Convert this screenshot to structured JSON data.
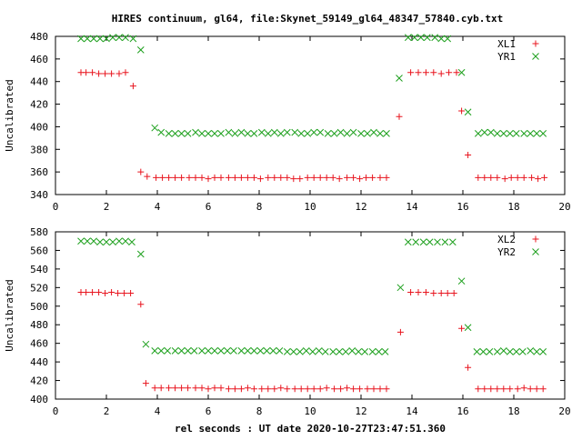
{
  "title": "HIRES continuum, gl64, file:Skynet_59149_gl64_48347_57840.cyb.txt",
  "chart_data": [
    {
      "type": "scatter",
      "ylabel": "Uncalibrated",
      "xlabel": "",
      "xlim": [
        0,
        20
      ],
      "ylim": [
        340,
        480
      ],
      "xticks": [
        0,
        2,
        4,
        6,
        8,
        10,
        12,
        14,
        16,
        18,
        20
      ],
      "yticks": [
        340,
        360,
        380,
        400,
        420,
        440,
        460,
        480
      ],
      "legend_position": "top-right",
      "series": [
        {
          "name": "XL1",
          "color": "#e8141e",
          "marker": "plus",
          "x": [
            1.0,
            1.2,
            1.45,
            1.7,
            1.95,
            2.2,
            2.5,
            2.75,
            3.05,
            3.35,
            3.6,
            3.95,
            4.2,
            4.45,
            4.7,
            4.95,
            5.25,
            5.5,
            5.75,
            6.0,
            6.25,
            6.5,
            6.8,
            7.05,
            7.3,
            7.55,
            7.8,
            8.05,
            8.35,
            8.6,
            8.85,
            9.1,
            9.35,
            9.6,
            9.9,
            10.15,
            10.4,
            10.65,
            10.9,
            11.15,
            11.45,
            11.7,
            11.95,
            12.2,
            12.45,
            12.75,
            13.0,
            13.5,
            13.95,
            14.25,
            14.55,
            14.85,
            15.15,
            15.45,
            15.75,
            15.95,
            16.2,
            16.6,
            16.85,
            17.1,
            17.35,
            17.65,
            17.9,
            18.15,
            18.4,
            18.7,
            18.95,
            19.2
          ],
          "y": [
            448,
            448,
            448,
            447,
            447,
            447,
            447,
            448,
            436,
            360,
            356,
            355,
            355,
            355,
            355,
            355,
            355,
            355,
            355,
            354,
            355,
            355,
            355,
            355,
            355,
            355,
            355,
            354,
            355,
            355,
            355,
            355,
            354,
            354,
            355,
            355,
            355,
            355,
            355,
            354,
            355,
            355,
            354,
            355,
            355,
            355,
            355,
            409,
            448,
            448,
            448,
            448,
            447,
            448,
            448,
            414,
            375,
            355,
            355,
            355,
            355,
            354,
            355,
            355,
            355,
            355,
            354,
            355
          ]
        },
        {
          "name": "YR1",
          "color": "#1ea01e",
          "marker": "cross",
          "x": [
            1.0,
            1.25,
            1.5,
            1.75,
            2.0,
            2.25,
            2.5,
            2.75,
            3.05,
            3.35,
            3.9,
            4.15,
            4.45,
            4.7,
            4.95,
            5.2,
            5.5,
            5.75,
            6.0,
            6.25,
            6.5,
            6.8,
            7.05,
            7.3,
            7.55,
            7.8,
            8.1,
            8.35,
            8.6,
            8.85,
            9.1,
            9.4,
            9.65,
            9.9,
            10.15,
            10.4,
            10.7,
            10.95,
            11.2,
            11.45,
            11.7,
            12.0,
            12.25,
            12.5,
            12.75,
            13.0,
            13.5,
            13.85,
            14.1,
            14.35,
            14.6,
            14.9,
            15.15,
            15.4,
            15.95,
            16.2,
            16.6,
            16.85,
            17.1,
            17.35,
            17.6,
            17.85,
            18.1,
            18.4,
            18.65,
            18.9,
            19.15
          ],
          "y": [
            478,
            478,
            478,
            478,
            478,
            479,
            479,
            479,
            478,
            468,
            399,
            395,
            394,
            394,
            394,
            394,
            395,
            394,
            394,
            394,
            394,
            395,
            394,
            395,
            394,
            394,
            395,
            394,
            395,
            394,
            395,
            395,
            394,
            394,
            395,
            395,
            394,
            394,
            395,
            394,
            395,
            394,
            394,
            395,
            394,
            394,
            443,
            479,
            479,
            479,
            479,
            479,
            478,
            478,
            448,
            413,
            394,
            395,
            395,
            394,
            394,
            394,
            394,
            394,
            394,
            394,
            394
          ]
        }
      ]
    },
    {
      "type": "scatter",
      "ylabel": "Uncalibrated",
      "xlabel": "rel seconds : UT date 2020-10-27T23:47:51.360",
      "xlim": [
        0,
        20
      ],
      "ylim": [
        400,
        580
      ],
      "xticks": [
        0,
        2,
        4,
        6,
        8,
        10,
        12,
        14,
        16,
        18,
        20
      ],
      "yticks": [
        400,
        420,
        440,
        460,
        480,
        500,
        520,
        540,
        560,
        580
      ],
      "legend_position": "top-right",
      "series": [
        {
          "name": "XL2",
          "color": "#e8141e",
          "marker": "plus",
          "x": [
            1.0,
            1.2,
            1.45,
            1.7,
            1.95,
            2.2,
            2.45,
            2.7,
            2.95,
            3.35,
            3.55,
            3.9,
            4.15,
            4.45,
            4.7,
            4.95,
            5.2,
            5.5,
            5.75,
            6.0,
            6.25,
            6.5,
            6.8,
            7.05,
            7.3,
            7.55,
            7.8,
            8.1,
            8.35,
            8.6,
            8.85,
            9.1,
            9.4,
            9.65,
            9.9,
            10.15,
            10.4,
            10.65,
            10.95,
            11.2,
            11.45,
            11.7,
            11.95,
            12.25,
            12.5,
            12.75,
            13.0,
            13.55,
            13.95,
            14.25,
            14.55,
            14.85,
            15.15,
            15.4,
            15.65,
            15.95,
            16.2,
            16.6,
            16.85,
            17.1,
            17.35,
            17.6,
            17.85,
            18.15,
            18.4,
            18.65,
            18.9,
            19.15
          ],
          "y": [
            515,
            515,
            515,
            515,
            514,
            515,
            514,
            514,
            514,
            502,
            417,
            412,
            412,
            412,
            412,
            412,
            412,
            412,
            412,
            411,
            412,
            412,
            411,
            411,
            411,
            412,
            411,
            411,
            411,
            411,
            412,
            411,
            411,
            411,
            411,
            411,
            411,
            412,
            411,
            411,
            412,
            411,
            411,
            411,
            411,
            411,
            411,
            472,
            515,
            515,
            515,
            514,
            514,
            514,
            514,
            476,
            434,
            411,
            411,
            411,
            411,
            411,
            411,
            411,
            412,
            411,
            411,
            411
          ]
        },
        {
          "name": "YR2",
          "color": "#1ea01e",
          "marker": "cross",
          "x": [
            1.0,
            1.25,
            1.5,
            1.75,
            2.0,
            2.25,
            2.5,
            2.75,
            3.0,
            3.35,
            3.55,
            3.9,
            4.15,
            4.4,
            4.7,
            4.95,
            5.2,
            5.45,
            5.75,
            6.0,
            6.25,
            6.5,
            6.75,
            7.0,
            7.3,
            7.55,
            7.8,
            8.05,
            8.3,
            8.55,
            8.8,
            9.1,
            9.35,
            9.6,
            9.85,
            10.1,
            10.35,
            10.6,
            10.9,
            11.15,
            11.4,
            11.65,
            11.9,
            12.15,
            12.45,
            12.7,
            12.95,
            13.55,
            13.85,
            14.15,
            14.45,
            14.7,
            15.0,
            15.3,
            15.6,
            15.95,
            16.2,
            16.55,
            16.8,
            17.05,
            17.35,
            17.6,
            17.85,
            18.1,
            18.35,
            18.65,
            18.9,
            19.15
          ],
          "y": [
            570,
            570,
            570,
            569,
            569,
            569,
            570,
            570,
            569,
            556,
            459,
            452,
            452,
            452,
            452,
            452,
            452,
            452,
            452,
            452,
            452,
            452,
            452,
            452,
            452,
            452,
            452,
            452,
            452,
            452,
            452,
            451,
            451,
            451,
            452,
            451,
            452,
            451,
            451,
            451,
            451,
            452,
            451,
            451,
            451,
            451,
            451,
            520,
            569,
            569,
            569,
            569,
            569,
            569,
            569,
            527,
            477,
            451,
            451,
            451,
            451,
            452,
            451,
            451,
            451,
            452,
            451,
            451
          ]
        }
      ]
    }
  ]
}
